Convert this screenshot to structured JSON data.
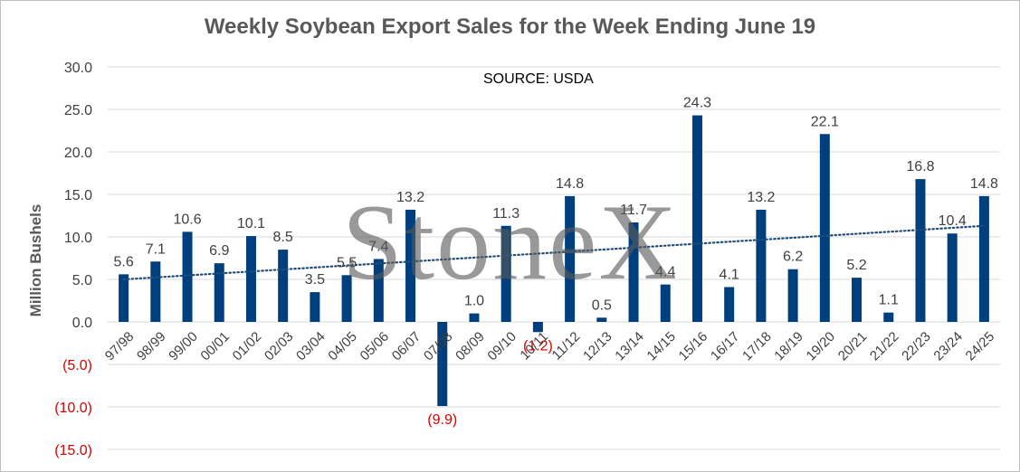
{
  "chart_data": {
    "type": "bar",
    "title": "Weekly Soybean Export Sales for the Week Ending June 19",
    "source": "SOURCE: USDA",
    "ylabel": "Million Bushels",
    "xlabel": "",
    "watermark": "StoneX",
    "ylim": [
      -15,
      30
    ],
    "yticks": [
      30,
      25,
      20,
      15,
      10,
      5,
      0,
      -5,
      -10,
      -15
    ],
    "ytick_labels": [
      "30.0",
      "25.0",
      "20.0",
      "15.0",
      "10.0",
      "5.0",
      "0.0",
      "(5.0)",
      "(10.0)",
      "(15.0)"
    ],
    "categories": [
      "97/98",
      "98/99",
      "99/00",
      "00/01",
      "01/02",
      "02/03",
      "03/04",
      "04/05",
      "05/06",
      "06/07",
      "07/08",
      "08/09",
      "09/10",
      "10/11",
      "11/12",
      "12/13",
      "13/14",
      "14/15",
      "15/16",
      "16/17",
      "17/18",
      "18/19",
      "19/20",
      "20/21",
      "21/22",
      "22/23",
      "23/24",
      "24/25"
    ],
    "values": [
      5.6,
      7.1,
      10.6,
      6.9,
      10.1,
      8.5,
      3.5,
      5.5,
      7.4,
      13.2,
      -9.9,
      1.0,
      11.3,
      -1.2,
      14.8,
      0.5,
      11.7,
      4.4,
      24.3,
      4.1,
      13.2,
      6.2,
      22.1,
      5.2,
      1.1,
      16.8,
      10.4,
      14.8
    ],
    "data_labels": [
      "5.6",
      "7.1",
      "10.6",
      "6.9",
      "10.1",
      "8.5",
      "3.5",
      "5.5",
      "7.4",
      "13.2",
      "(9.9)",
      "1.0",
      "11.3",
      "(1.2)",
      "14.8",
      "0.5",
      "11.7",
      "4.4",
      "24.3",
      "4.1",
      "13.2",
      "6.2",
      "22.1",
      "5.2",
      "1.1",
      "16.8",
      "10.4",
      "14.8"
    ],
    "trendline": {
      "type": "linear",
      "style": "dotted",
      "start": 5.0,
      "end": 11.3
    },
    "grid": true,
    "legend": "none",
    "colors": {
      "bar": "#003f7d",
      "negative_text": "#e00000",
      "text": "#404040",
      "grid": "#d9d9d9",
      "title": "#595959",
      "trend": "#1f4e79"
    }
  }
}
